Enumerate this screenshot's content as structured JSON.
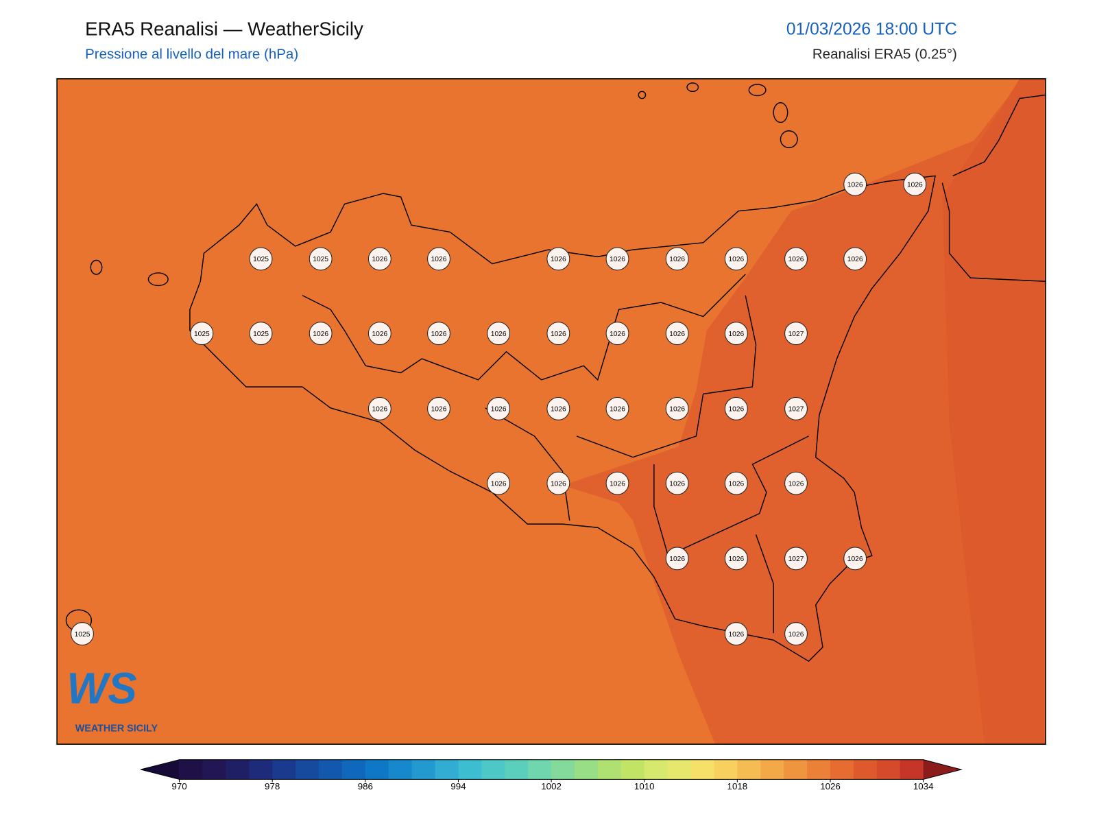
{
  "header": {
    "title": "ERA5 Reanalisi — WeatherSicily",
    "subtitle": "Pressione al livello del mare (hPa)",
    "datetime": "01/03/2026 18:00 UTC",
    "source": "Reanalisi ERA5 (0.25°)"
  },
  "logo": {
    "mark": "WS",
    "name": "WEATHER SICILY"
  },
  "stations": [
    1025,
    1025,
    1026,
    1026,
    1026,
    1026,
    1026,
    1026,
    1026,
    1026,
    1026,
    1026,
    1025,
    1025,
    1026,
    1026,
    1026,
    1026,
    1026,
    1026,
    1026,
    1026,
    1027,
    1026,
    1026,
    1026,
    1026,
    1026,
    1026,
    1026,
    1027,
    1026,
    1026,
    1026,
    1026,
    1026,
    1026,
    1026,
    1026,
    1027,
    1026,
    1025,
    1026,
    1026
  ],
  "colorbar": {
    "levels": [
      970,
      972,
      974,
      976,
      978,
      980,
      982,
      984,
      986,
      988,
      990,
      992,
      994,
      996,
      998,
      1000,
      1002,
      1004,
      1006,
      1008,
      1010,
      1012,
      1014,
      1016,
      1018,
      1020,
      1022,
      1024,
      1026,
      1028,
      1030,
      1032,
      1034
    ],
    "colors": [
      "#1f1048",
      "#221654",
      "#1f1f66",
      "#1e2a7a",
      "#1a3a8e",
      "#154a9e",
      "#1258ad",
      "#0f68bb",
      "#0f78c6",
      "#1888cc",
      "#2499d0",
      "#32acd3",
      "#3cbdd0",
      "#4ec8c6",
      "#5ccfbc",
      "#6fd6ad",
      "#84da9a",
      "#98de86",
      "#aee072",
      "#c2e466",
      "#d6e86e",
      "#e6e86e",
      "#f6e06a",
      "#f8d060",
      "#f6bc54",
      "#f3a948",
      "#ef9540",
      "#eb8038",
      "#e66c32",
      "#de5a2c",
      "#d44a2a",
      "#c53628"
    ],
    "extend_colors": [
      "#150a38",
      "#8a1c1c"
    ],
    "ticks": [
      970,
      978,
      986,
      994,
      1002,
      1010,
      1018,
      1026,
      1034
    ]
  }
}
